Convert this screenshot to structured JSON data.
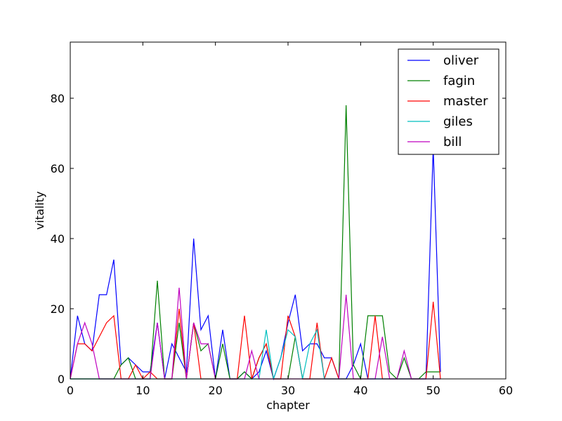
{
  "chart_data": {
    "type": "line",
    "title": "",
    "xlabel": "chapter",
    "ylabel": "vitality",
    "xlim": [
      0,
      60
    ],
    "ylim": [
      0,
      96
    ],
    "xticks": [
      0,
      10,
      20,
      30,
      40,
      50,
      60
    ],
    "yticks": [
      0,
      20,
      40,
      60,
      80
    ],
    "grid": false,
    "legend_position": "top-right",
    "series": [
      {
        "name": "oliver",
        "color": "#0000ff",
        "points": [
          [
            0,
            0
          ],
          [
            1,
            18
          ],
          [
            2,
            10
          ],
          [
            3,
            8
          ],
          [
            4,
            24
          ],
          [
            5,
            24
          ],
          [
            6,
            34
          ],
          [
            7,
            4
          ],
          [
            8,
            6
          ],
          [
            9,
            4
          ],
          [
            10,
            2
          ],
          [
            11,
            2
          ],
          [
            12,
            16
          ],
          [
            13,
            0
          ],
          [
            14,
            10
          ],
          [
            15,
            6
          ],
          [
            16,
            2
          ],
          [
            17,
            40
          ],
          [
            18,
            14
          ],
          [
            19,
            18
          ],
          [
            20,
            0
          ],
          [
            21,
            14
          ],
          [
            22,
            0
          ],
          [
            23,
            0
          ],
          [
            24,
            2
          ],
          [
            25,
            0
          ],
          [
            26,
            2
          ],
          [
            27,
            8
          ],
          [
            28,
            0
          ],
          [
            29,
            6
          ],
          [
            30,
            16
          ],
          [
            31,
            24
          ],
          [
            32,
            8
          ],
          [
            33,
            10
          ],
          [
            34,
            10
          ],
          [
            35,
            6
          ],
          [
            36,
            6
          ],
          [
            37,
            0
          ],
          [
            38,
            0
          ],
          [
            39,
            4
          ],
          [
            40,
            10
          ],
          [
            41,
            0
          ],
          [
            42,
            0
          ],
          [
            43,
            0
          ],
          [
            44,
            0
          ],
          [
            45,
            0
          ],
          [
            46,
            0
          ],
          [
            47,
            0
          ],
          [
            48,
            0
          ],
          [
            49,
            0
          ],
          [
            50,
            66
          ],
          [
            51,
            2
          ]
        ]
      },
      {
        "name": "fagin",
        "color": "#008000",
        "points": [
          [
            0,
            0
          ],
          [
            1,
            0
          ],
          [
            2,
            0
          ],
          [
            3,
            0
          ],
          [
            4,
            0
          ],
          [
            5,
            0
          ],
          [
            6,
            0
          ],
          [
            7,
            4
          ],
          [
            8,
            6
          ],
          [
            9,
            0
          ],
          [
            10,
            0
          ],
          [
            11,
            0
          ],
          [
            12,
            28
          ],
          [
            13,
            0
          ],
          [
            14,
            0
          ],
          [
            15,
            16
          ],
          [
            16,
            0
          ],
          [
            17,
            16
          ],
          [
            18,
            8
          ],
          [
            19,
            10
          ],
          [
            20,
            0
          ],
          [
            21,
            10
          ],
          [
            22,
            0
          ],
          [
            23,
            0
          ],
          [
            24,
            2
          ],
          [
            25,
            0
          ],
          [
            26,
            6
          ],
          [
            27,
            10
          ],
          [
            28,
            0
          ],
          [
            29,
            0
          ],
          [
            30,
            0
          ],
          [
            31,
            12
          ],
          [
            32,
            0
          ],
          [
            33,
            0
          ],
          [
            34,
            0
          ],
          [
            35,
            0
          ],
          [
            36,
            0
          ],
          [
            37,
            0
          ],
          [
            38,
            78
          ],
          [
            39,
            4
          ],
          [
            40,
            0
          ],
          [
            41,
            18
          ],
          [
            42,
            18
          ],
          [
            43,
            18
          ],
          [
            44,
            2
          ],
          [
            45,
            0
          ],
          [
            46,
            6
          ],
          [
            47,
            0
          ],
          [
            48,
            0
          ],
          [
            49,
            2
          ],
          [
            50,
            2
          ],
          [
            51,
            2
          ]
        ]
      },
      {
        "name": "master",
        "color": "#ff0000",
        "points": [
          [
            0,
            0
          ],
          [
            1,
            10
          ],
          [
            2,
            10
          ],
          [
            3,
            8
          ],
          [
            4,
            12
          ],
          [
            5,
            16
          ],
          [
            6,
            18
          ],
          [
            7,
            0
          ],
          [
            8,
            0
          ],
          [
            9,
            4
          ],
          [
            10,
            0
          ],
          [
            11,
            2
          ],
          [
            12,
            0
          ],
          [
            13,
            0
          ],
          [
            14,
            0
          ],
          [
            15,
            20
          ],
          [
            16,
            0
          ],
          [
            17,
            16
          ],
          [
            18,
            0
          ],
          [
            19,
            0
          ],
          [
            20,
            0
          ],
          [
            21,
            0
          ],
          [
            22,
            0
          ],
          [
            23,
            0
          ],
          [
            24,
            18
          ],
          [
            25,
            0
          ],
          [
            26,
            6
          ],
          [
            27,
            10
          ],
          [
            28,
            0
          ],
          [
            29,
            0
          ],
          [
            30,
            18
          ],
          [
            31,
            12
          ],
          [
            32,
            0
          ],
          [
            33,
            0
          ],
          [
            34,
            16
          ],
          [
            35,
            0
          ],
          [
            36,
            6
          ],
          [
            37,
            0
          ],
          [
            38,
            0
          ],
          [
            39,
            0
          ],
          [
            40,
            0
          ],
          [
            41,
            0
          ],
          [
            42,
            18
          ],
          [
            43,
            0
          ],
          [
            44,
            0
          ],
          [
            45,
            0
          ],
          [
            46,
            0
          ],
          [
            47,
            0
          ],
          [
            48,
            0
          ],
          [
            49,
            0
          ],
          [
            50,
            22
          ],
          [
            51,
            0
          ]
        ]
      },
      {
        "name": "giles",
        "color": "#00bfbf",
        "points": [
          [
            0,
            0
          ],
          [
            1,
            0
          ],
          [
            2,
            0
          ],
          [
            3,
            0
          ],
          [
            4,
            0
          ],
          [
            5,
            0
          ],
          [
            6,
            0
          ],
          [
            7,
            0
          ],
          [
            8,
            0
          ],
          [
            9,
            0
          ],
          [
            10,
            0
          ],
          [
            11,
            0
          ],
          [
            12,
            0
          ],
          [
            13,
            0
          ],
          [
            14,
            0
          ],
          [
            15,
            0
          ],
          [
            16,
            0
          ],
          [
            17,
            0
          ],
          [
            18,
            0
          ],
          [
            19,
            0
          ],
          [
            20,
            0
          ],
          [
            21,
            0
          ],
          [
            22,
            0
          ],
          [
            23,
            0
          ],
          [
            24,
            0
          ],
          [
            25,
            0
          ],
          [
            26,
            0
          ],
          [
            27,
            14
          ],
          [
            28,
            0
          ],
          [
            29,
            6
          ],
          [
            30,
            14
          ],
          [
            31,
            12
          ],
          [
            32,
            0
          ],
          [
            33,
            10
          ],
          [
            34,
            14
          ],
          [
            35,
            0
          ],
          [
            36,
            0
          ],
          [
            37,
            0
          ],
          [
            38,
            0
          ],
          [
            39,
            0
          ],
          [
            40,
            0
          ],
          [
            41,
            0
          ],
          [
            42,
            0
          ],
          [
            43,
            0
          ],
          [
            44,
            0
          ],
          [
            45,
            0
          ],
          [
            46,
            0
          ],
          [
            47,
            0
          ],
          [
            48,
            0
          ],
          [
            49,
            0
          ],
          [
            50,
            0
          ],
          [
            51,
            0
          ]
        ]
      },
      {
        "name": "bill",
        "color": "#bf00bf",
        "points": [
          [
            0,
            0
          ],
          [
            1,
            10
          ],
          [
            2,
            16
          ],
          [
            3,
            10
          ],
          [
            4,
            0
          ],
          [
            5,
            0
          ],
          [
            6,
            0
          ],
          [
            7,
            0
          ],
          [
            8,
            0
          ],
          [
            9,
            0
          ],
          [
            10,
            0
          ],
          [
            11,
            0
          ],
          [
            12,
            16
          ],
          [
            13,
            0
          ],
          [
            14,
            0
          ],
          [
            15,
            26
          ],
          [
            16,
            0
          ],
          [
            17,
            16
          ],
          [
            18,
            10
          ],
          [
            19,
            10
          ],
          [
            20,
            0
          ],
          [
            21,
            0
          ],
          [
            22,
            0
          ],
          [
            23,
            0
          ],
          [
            24,
            0
          ],
          [
            25,
            8
          ],
          [
            26,
            0
          ],
          [
            27,
            0
          ],
          [
            28,
            0
          ],
          [
            29,
            0
          ],
          [
            30,
            0
          ],
          [
            31,
            0
          ],
          [
            32,
            0
          ],
          [
            33,
            0
          ],
          [
            34,
            0
          ],
          [
            35,
            0
          ],
          [
            36,
            0
          ],
          [
            37,
            0
          ],
          [
            38,
            24
          ],
          [
            39,
            0
          ],
          [
            40,
            0
          ],
          [
            41,
            0
          ],
          [
            42,
            0
          ],
          [
            43,
            12
          ],
          [
            44,
            0
          ],
          [
            45,
            0
          ],
          [
            46,
            8
          ],
          [
            47,
            0
          ],
          [
            48,
            0
          ],
          [
            49,
            0
          ],
          [
            50,
            0
          ],
          [
            51,
            0
          ]
        ]
      }
    ]
  }
}
